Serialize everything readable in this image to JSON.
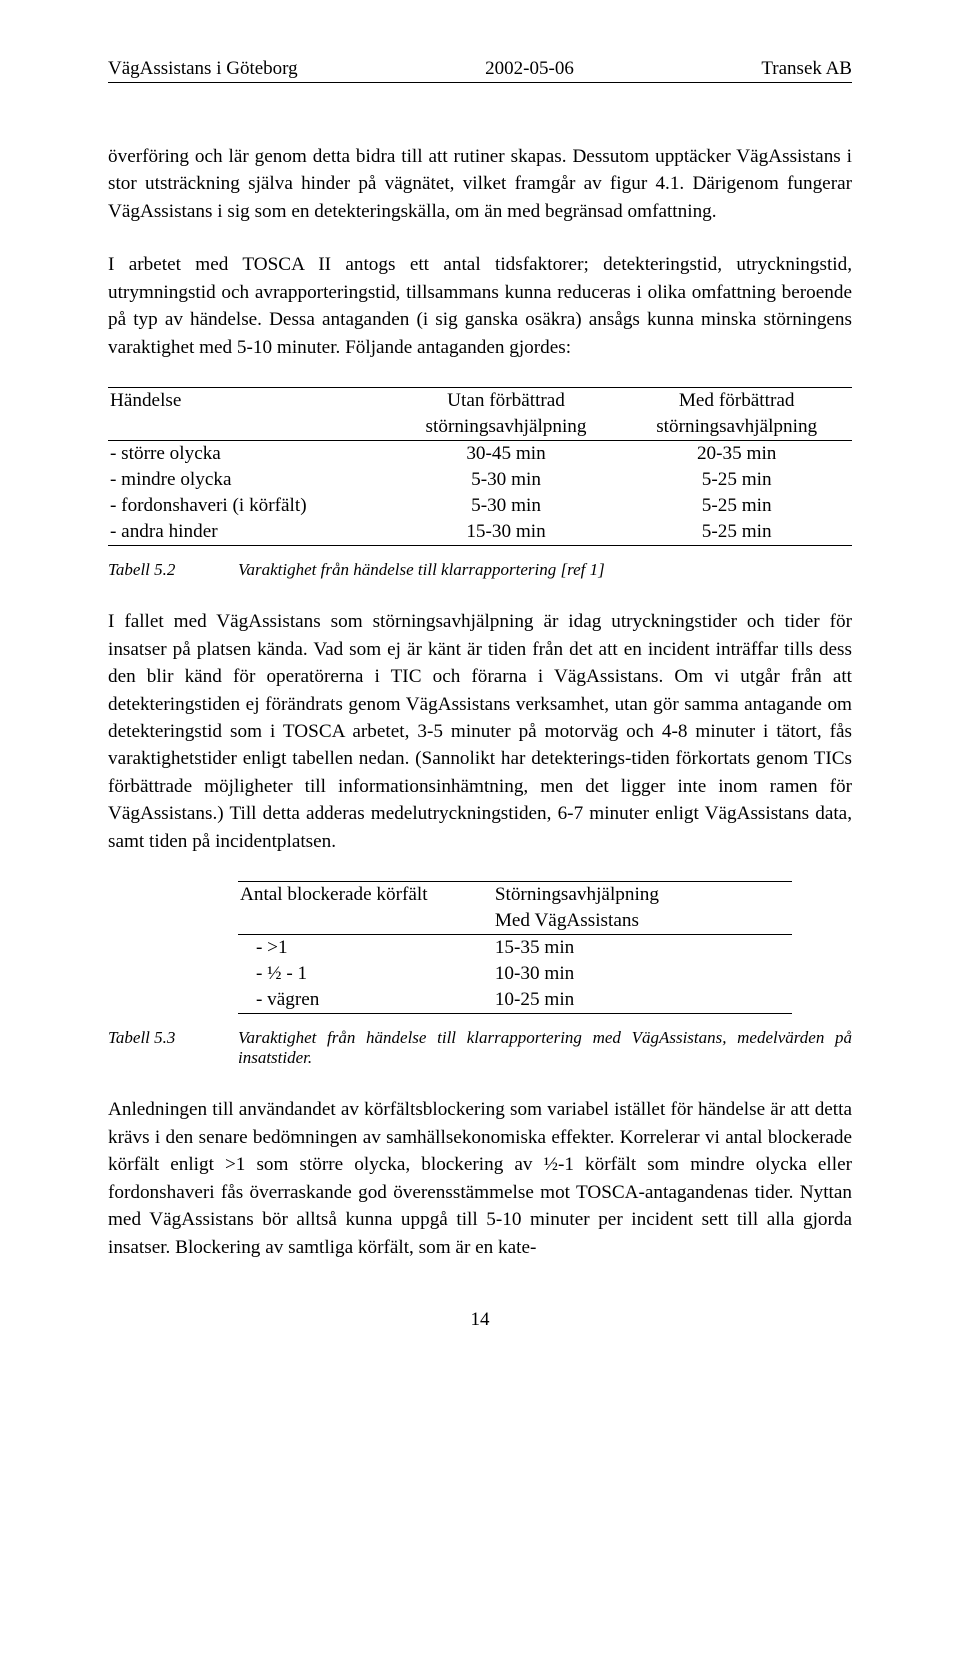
{
  "header": {
    "left": "VägAssistans i Göteborg",
    "center": "2002-05-06",
    "right": "Transek AB"
  },
  "para1": "överföring och lär genom detta bidra till att rutiner skapas. Dessutom upptäcker VägAssistans i stor utsträckning själva hinder på vägnätet, vilket framgår av figur 4.1. Därigenom fungerar VägAssistans i sig som en detekteringskälla, om än med begränsad omfattning.",
  "para2": "I arbetet med TOSCA II antogs ett antal tidsfaktorer; detekteringstid, utryckningstid, utrymningstid och avrapporteringstid, tillsammans kunna reduceras i olika omfattning beroende på typ av händelse. Dessa antaganden (i sig ganska osäkra) ansågs kunna minska störningens varaktighet med 5-10 minuter. Följande antaganden gjordes:",
  "table1": {
    "columns": [
      "Händelse",
      "Utan förbättrad",
      "Med förbättrad"
    ],
    "subcolumns": [
      "",
      "störningsavhjälpning",
      "störningsavhjälpning"
    ],
    "rows": [
      [
        "- större olycka",
        "30-45 min",
        "20-35 min"
      ],
      [
        "- mindre olycka",
        "5-30 min",
        "5-25 min"
      ],
      [
        "- fordonshaveri (i körfält)",
        "5-30 min",
        "5-25 min"
      ],
      [
        "- andra hinder",
        "15-30 min",
        "5-25 min"
      ]
    ]
  },
  "caption1": {
    "label": "Tabell 5.2",
    "text": "Varaktighet från händelse till klarrapportering [ref 1]"
  },
  "para3": "I fallet med VägAssistans som störningsavhjälpning är idag utryckningstider och tider för insatser på platsen kända. Vad som ej är känt är tiden från det att en incident inträffar tills dess den blir känd för operatörerna i TIC och förarna i VägAssistans. Om vi utgår från att detekteringstiden ej förändrats genom VägAssistans verksamhet, utan gör samma antagande om detekteringstid som i TOSCA arbetet, 3-5 minuter på motorväg och 4-8 minuter i tätort, fås varaktighetstider enligt tabellen nedan. (Sannolikt har detekterings-tiden förkortats genom TICs förbättrade möjligheter till informationsinhämtning, men det ligger inte inom ramen för VägAssistans.) Till detta adderas medelutryckningstiden, 6-7 minuter enligt VägAssistans data, samt tiden på incidentplatsen.",
  "table2": {
    "columns": [
      "Antal blockerade körfält",
      "Störningsavhjälpning"
    ],
    "subcolumns": [
      "",
      "Med VägAssistans"
    ],
    "rows": [
      [
        "-   >1",
        "15-35 min"
      ],
      [
        "-   ½ - 1",
        "10-30 min"
      ],
      [
        "-   vägren",
        "10-25 min"
      ]
    ]
  },
  "caption2": {
    "label": "Tabell 5.3",
    "text": "Varaktighet från händelse till klarrapportering med VägAssistans, medelvärden på insatstider."
  },
  "para4": "Anledningen till användandet av körfältsblockering som variabel istället för händelse är att detta krävs i den senare bedömningen av samhällsekonomiska effekter. Korrelerar vi antal blockerade körfält enligt >1 som större olycka, blockering av ½-1 körfält som mindre olycka eller fordonshaveri fås överraskande god överensstämmelse mot TOSCA-antagandenas tider. Nyttan med VägAssistans bör alltså kunna uppgå till 5-10 minuter per incident sett till alla gjorda insatser. Blockering av samtliga körfält, som är en kate-",
  "pageNumber": "14"
}
